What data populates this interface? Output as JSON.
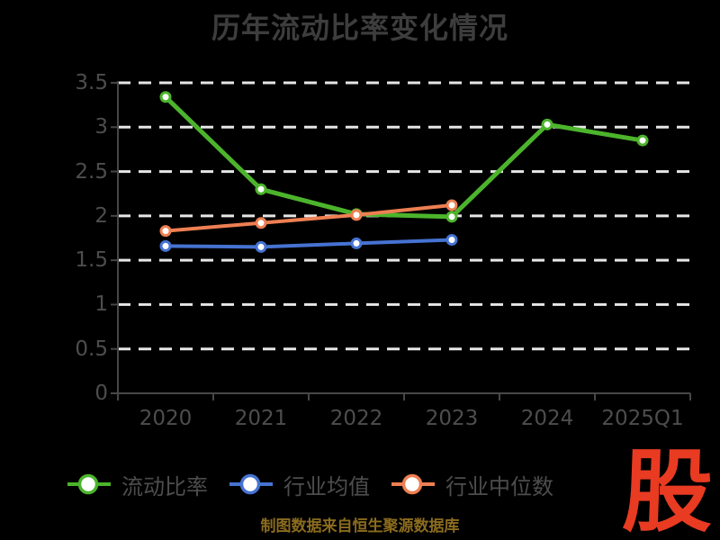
{
  "title": "历年流动比率变化情况",
  "caption": "制图数据来自恒生聚源数据库",
  "logo_text": "股",
  "palette": {
    "background": "#000000",
    "title_text": "#3d3d3d",
    "tick_text": "#4d4d4d",
    "legend_text": "#4d4d4d",
    "gridline": "#e6e6e6",
    "axis": "#474747",
    "caption_text": "#8b6c1e",
    "logo_red": "#e83b22",
    "marker_fill": "#ffffff"
  },
  "chart_data": {
    "type": "line",
    "title": "历年流动比率变化情况",
    "categories": [
      "2020",
      "2021",
      "2022",
      "2023",
      "2024",
      "2025Q1"
    ],
    "series": [
      {
        "name": "流动比率",
        "color": "#4cb42c",
        "line_width": 5,
        "values": [
          3.34,
          2.3,
          2.02,
          1.99,
          3.03,
          2.85
        ]
      },
      {
        "name": "行业均值",
        "color": "#4673d2",
        "line_width": 4,
        "values": [
          1.66,
          1.65,
          1.69,
          1.73,
          null,
          null
        ]
      },
      {
        "name": "行业中位数",
        "color": "#ee7f52",
        "line_width": 4,
        "values": [
          1.83,
          1.92,
          2.01,
          2.12,
          null,
          null
        ]
      }
    ],
    "xlabel": "",
    "ylabel": "",
    "ylim": [
      0,
      3.5
    ],
    "yticks": [
      0,
      0.5,
      1,
      1.5,
      2,
      2.5,
      3,
      3.5
    ],
    "grid": "horizontal-dashed",
    "legend_position": "bottom"
  }
}
